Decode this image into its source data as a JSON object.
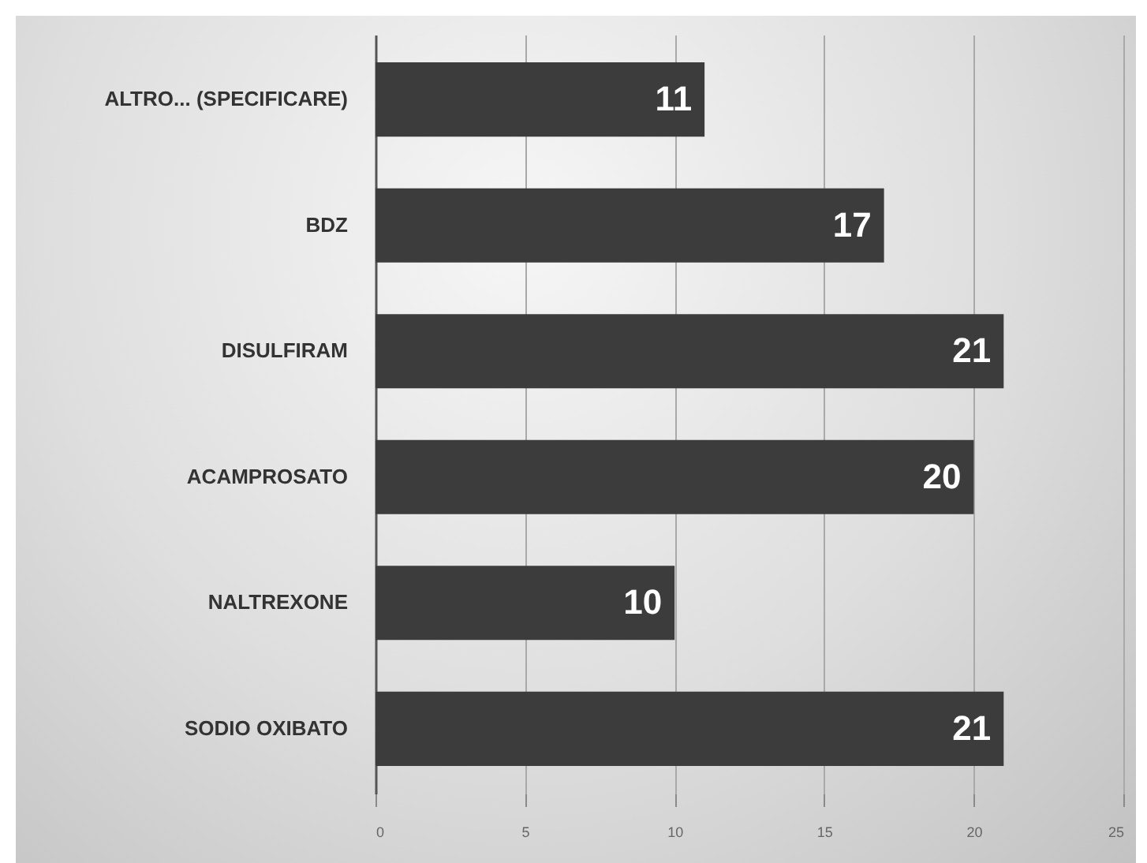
{
  "chart_data": {
    "type": "bar",
    "orientation": "horizontal",
    "categories": [
      "ALTRO... (SPECIFICARE)",
      "BDZ",
      "DISULFIRAM",
      "ACAMPROSATO",
      "NALTREXONE",
      "SODIO OXIBATO"
    ],
    "values": [
      11,
      17,
      21,
      20,
      10,
      21
    ],
    "color": "#3c3c3c",
    "xlim": [
      0,
      25
    ],
    "xticks": [
      0,
      5,
      10,
      15,
      20,
      25
    ],
    "grid": "x",
    "data_labels": true
  }
}
